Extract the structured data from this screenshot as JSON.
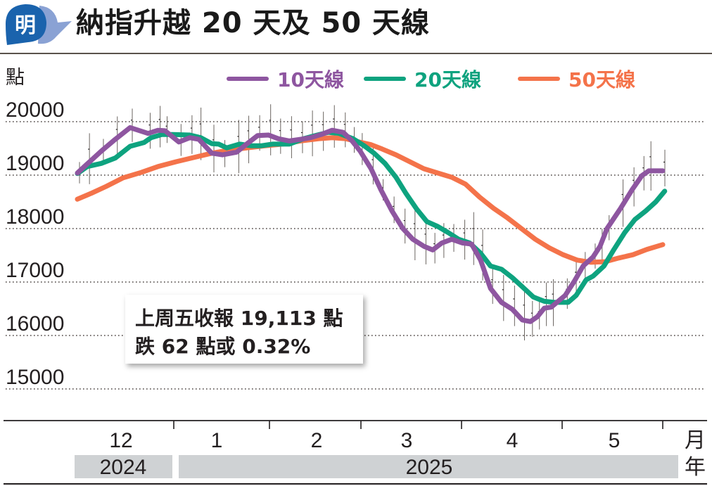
{
  "header": {
    "logo_char": "明",
    "title": "納指升越 20 天及 50 天線"
  },
  "chart_data": {
    "type": "line",
    "title": "納指升越 20 天及 50 天線",
    "ylabel": "點",
    "xlabel": "月",
    "year_label_suffix": "年",
    "ylim": [
      14500,
      20600
    ],
    "yticks": [
      20000,
      19000,
      18000,
      17000,
      16000,
      15000
    ],
    "ytick_labels": [
      "20000",
      "19000",
      "18000",
      "17000",
      "16000",
      "15000"
    ],
    "grid": true,
    "legend_position": "top",
    "months": [
      "12",
      "1",
      "2",
      "3",
      "4",
      "5"
    ],
    "years": [
      {
        "label": "2024",
        "months": [
          "12"
        ]
      },
      {
        "label": "2025",
        "months": [
          "1",
          "2",
          "3",
          "4",
          "5"
        ]
      }
    ],
    "x_note": "x values are fractional months since 2024-11-21 (0) ... 2025-05-23 (end)",
    "series": [
      {
        "name": "10天線",
        "color": "#8e56a0",
        "points": [
          [
            0,
            19040
          ],
          [
            0.1,
            19210
          ],
          [
            0.24,
            19450
          ],
          [
            0.38,
            19670
          ],
          [
            0.53,
            19890
          ],
          [
            0.71,
            19780
          ],
          [
            0.81,
            19840
          ],
          [
            0.88,
            19830
          ],
          [
            1.02,
            19620
          ],
          [
            1.13,
            19700
          ],
          [
            1.22,
            19670
          ],
          [
            1.35,
            19410
          ],
          [
            1.46,
            19380
          ],
          [
            1.6,
            19430
          ],
          [
            1.7,
            19580
          ],
          [
            1.81,
            19740
          ],
          [
            1.92,
            19750
          ],
          [
            2.02,
            19680
          ],
          [
            2.13,
            19640
          ],
          [
            2.24,
            19670
          ],
          [
            2.34,
            19700
          ],
          [
            2.45,
            19760
          ],
          [
            2.56,
            19840
          ],
          [
            2.67,
            19800
          ],
          [
            2.76,
            19640
          ],
          [
            2.84,
            19450
          ],
          [
            2.95,
            19120
          ],
          [
            3.05,
            18720
          ],
          [
            3.16,
            18330
          ],
          [
            3.27,
            18000
          ],
          [
            3.37,
            17800
          ],
          [
            3.48,
            17670
          ],
          [
            3.57,
            17600
          ],
          [
            3.66,
            17730
          ],
          [
            3.76,
            17800
          ],
          [
            3.87,
            17730
          ],
          [
            3.96,
            17710
          ],
          [
            4.05,
            17410
          ],
          [
            4.15,
            16880
          ],
          [
            4.26,
            16620
          ],
          [
            4.37,
            16490
          ],
          [
            4.47,
            16290
          ],
          [
            4.55,
            16260
          ],
          [
            4.62,
            16350
          ],
          [
            4.69,
            16510
          ],
          [
            4.76,
            16530
          ],
          [
            4.9,
            16750
          ],
          [
            4.99,
            17010
          ],
          [
            5.08,
            17300
          ],
          [
            5.18,
            17470
          ],
          [
            5.25,
            17670
          ],
          [
            5.32,
            18000
          ],
          [
            5.46,
            18390
          ],
          [
            5.57,
            18720
          ],
          [
            5.67,
            18990
          ],
          [
            5.74,
            19080
          ],
          [
            5.88,
            19080
          ]
        ]
      },
      {
        "name": "20天線",
        "color": "#0ea37f",
        "points": [
          [
            0,
            19030
          ],
          [
            0.1,
            19160
          ],
          [
            0.24,
            19220
          ],
          [
            0.38,
            19320
          ],
          [
            0.53,
            19540
          ],
          [
            0.67,
            19610
          ],
          [
            0.74,
            19700
          ],
          [
            0.85,
            19760
          ],
          [
            0.96,
            19760
          ],
          [
            1.13,
            19750
          ],
          [
            1.24,
            19700
          ],
          [
            1.35,
            19590
          ],
          [
            1.42,
            19580
          ],
          [
            1.5,
            19510
          ],
          [
            1.63,
            19580
          ],
          [
            1.74,
            19550
          ],
          [
            1.85,
            19550
          ],
          [
            1.96,
            19580
          ],
          [
            2.13,
            19580
          ],
          [
            2.27,
            19680
          ],
          [
            2.41,
            19750
          ],
          [
            2.52,
            19800
          ],
          [
            2.63,
            19780
          ],
          [
            2.77,
            19680
          ],
          [
            2.88,
            19550
          ],
          [
            2.98,
            19410
          ],
          [
            3.09,
            19220
          ],
          [
            3.2,
            18960
          ],
          [
            3.3,
            18660
          ],
          [
            3.41,
            18360
          ],
          [
            3.51,
            18130
          ],
          [
            3.62,
            18040
          ],
          [
            3.72,
            17930
          ],
          [
            3.83,
            17800
          ],
          [
            3.94,
            17730
          ],
          [
            4.05,
            17540
          ],
          [
            4.15,
            17300
          ],
          [
            4.26,
            17240
          ],
          [
            4.37,
            17080
          ],
          [
            4.47,
            16910
          ],
          [
            4.58,
            16720
          ],
          [
            4.69,
            16640
          ],
          [
            4.79,
            16620
          ],
          [
            4.93,
            16620
          ],
          [
            5.01,
            16750
          ],
          [
            5.11,
            17040
          ],
          [
            5.18,
            17110
          ],
          [
            5.29,
            17300
          ],
          [
            5.39,
            17610
          ],
          [
            5.5,
            17930
          ],
          [
            5.6,
            18170
          ],
          [
            5.71,
            18330
          ],
          [
            5.81,
            18500
          ],
          [
            5.9,
            18700
          ]
        ]
      },
      {
        "name": "50天線",
        "color": "#f4734a",
        "points": [
          [
            0,
            18550
          ],
          [
            0.14,
            18660
          ],
          [
            0.29,
            18790
          ],
          [
            0.46,
            18950
          ],
          [
            0.64,
            19050
          ],
          [
            0.81,
            19160
          ],
          [
            0.99,
            19250
          ],
          [
            1.17,
            19330
          ],
          [
            1.35,
            19410
          ],
          [
            1.53,
            19470
          ],
          [
            1.71,
            19510
          ],
          [
            1.89,
            19550
          ],
          [
            2.06,
            19580
          ],
          [
            2.24,
            19640
          ],
          [
            2.42,
            19680
          ],
          [
            2.56,
            19700
          ],
          [
            2.7,
            19680
          ],
          [
            2.85,
            19610
          ],
          [
            2.95,
            19570
          ],
          [
            3.06,
            19490
          ],
          [
            3.2,
            19380
          ],
          [
            3.34,
            19250
          ],
          [
            3.48,
            19120
          ],
          [
            3.62,
            19040
          ],
          [
            3.76,
            18960
          ],
          [
            3.9,
            18830
          ],
          [
            4.04,
            18590
          ],
          [
            4.18,
            18380
          ],
          [
            4.32,
            18200
          ],
          [
            4.46,
            18000
          ],
          [
            4.6,
            17800
          ],
          [
            4.74,
            17640
          ],
          [
            4.88,
            17510
          ],
          [
            5.02,
            17410
          ],
          [
            5.16,
            17370
          ],
          [
            5.3,
            17380
          ],
          [
            5.44,
            17450
          ],
          [
            5.58,
            17510
          ],
          [
            5.72,
            17610
          ],
          [
            5.88,
            17700
          ]
        ]
      }
    ],
    "annotation": {
      "line1": "上周五收報 19,113 點",
      "line2": "跌 62 點或 0.32%",
      "close": 19113,
      "change": -62,
      "change_pct": -0.32
    }
  }
}
